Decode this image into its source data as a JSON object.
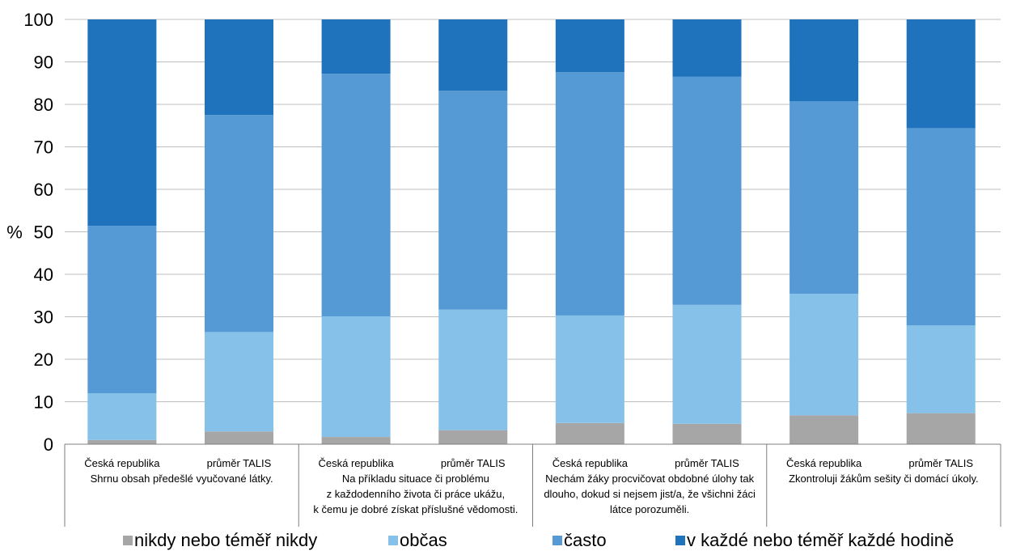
{
  "chart_data": {
    "type": "stacked-bar",
    "ylabel": "%",
    "ylim": [
      0,
      100
    ],
    "yticks": [
      0,
      10,
      20,
      30,
      40,
      50,
      60,
      70,
      80,
      90,
      100
    ],
    "grid": true,
    "legend_position": "bottom",
    "groups": [
      {
        "label_lines": [
          "Shrnu obsah předešlé vyučované látky."
        ],
        "bars": [
          "Česká republika",
          "průměr TALIS"
        ]
      },
      {
        "label_lines": [
          "Na příkladu situace či problému",
          "z každodenního života či práce ukážu,",
          "k čemu je dobré získat příslušné vědomosti."
        ],
        "bars": [
          "Česká republika",
          "průměr TALIS"
        ]
      },
      {
        "label_lines": [
          "Nechám žáky procvičovat obdobné úlohy tak",
          "dlouho, dokud si nejsem jist/a, že všichni žáci",
          "látce porozuměli."
        ],
        "bars": [
          "Česká republika",
          "průměr TALIS"
        ]
      },
      {
        "label_lines": [
          "Zkontroluji žákům sešity či domácí úkoly."
        ],
        "bars": [
          "Česká republika",
          "průměr TALIS"
        ]
      }
    ],
    "series": [
      {
        "name": "nikdy nebo téměř nikdy",
        "color": "#a6a6a6",
        "values": [
          1.0,
          3.0,
          1.7,
          3.3,
          5.0,
          4.8,
          6.8,
          7.3
        ]
      },
      {
        "name": "občas",
        "color": "#85c1e9",
        "values": [
          11.0,
          23.4,
          28.4,
          28.4,
          25.3,
          28.0,
          28.6,
          20.7
        ]
      },
      {
        "name": "často",
        "color": "#5599d5",
        "values": [
          39.4,
          51.1,
          57.1,
          51.5,
          57.3,
          53.7,
          45.3,
          46.4
        ]
      },
      {
        "name": "v každé nebo téměř každé hodině",
        "color": "#1f73bd",
        "values": [
          48.6,
          22.5,
          12.8,
          16.8,
          12.4,
          13.5,
          19.3,
          25.6
        ]
      }
    ]
  }
}
